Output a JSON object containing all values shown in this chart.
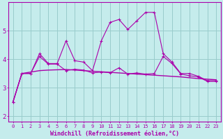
{
  "xlabel": "Windchill (Refroidissement éolien,°C)",
  "bg_color": "#c5ecec",
  "line_color": "#aa00aa",
  "grid_color": "#99cccc",
  "xlim": [
    -0.5,
    23.5
  ],
  "ylim": [
    1.8,
    6.0
  ],
  "yticks": [
    2,
    3,
    4,
    5
  ],
  "xticks": [
    0,
    1,
    2,
    3,
    4,
    5,
    6,
    7,
    8,
    9,
    10,
    11,
    12,
    13,
    14,
    15,
    16,
    17,
    18,
    19,
    20,
    21,
    22,
    23
  ],
  "series1_x": [
    0,
    1,
    2,
    3,
    4,
    5,
    6,
    7,
    8,
    9,
    10,
    11,
    12,
    13,
    14,
    15,
    16,
    17,
    18,
    19,
    20,
    21,
    22,
    23
  ],
  "series1_y": [
    2.5,
    3.5,
    3.5,
    4.2,
    3.85,
    3.85,
    4.65,
    3.95,
    3.9,
    3.6,
    4.65,
    5.3,
    5.4,
    5.05,
    5.35,
    5.65,
    5.65,
    4.2,
    3.9,
    3.5,
    3.5,
    3.4,
    3.25,
    3.25
  ],
  "series2_x": [
    0,
    1,
    2,
    3,
    4,
    5,
    6,
    7,
    8,
    9,
    10,
    11,
    12,
    13,
    14,
    15,
    16,
    17,
    18,
    19,
    20,
    21,
    22,
    23
  ],
  "series2_y": [
    2.5,
    3.5,
    3.55,
    3.6,
    3.62,
    3.63,
    3.64,
    3.62,
    3.6,
    3.58,
    3.56,
    3.54,
    3.52,
    3.5,
    3.48,
    3.46,
    3.44,
    3.42,
    3.4,
    3.38,
    3.35,
    3.32,
    3.3,
    3.28
  ],
  "series3_x": [
    0,
    1,
    2,
    3,
    4,
    5,
    6,
    7,
    8,
    9,
    10,
    11,
    12,
    13,
    14,
    15,
    16,
    17,
    18,
    19,
    20,
    21,
    22,
    23
  ],
  "series3_y": [
    2.5,
    3.5,
    3.5,
    4.1,
    3.83,
    3.83,
    3.6,
    3.65,
    3.62,
    3.52,
    3.55,
    3.53,
    3.7,
    3.48,
    3.52,
    3.48,
    3.5,
    4.1,
    3.85,
    3.48,
    3.42,
    3.38,
    3.22,
    3.22
  ]
}
